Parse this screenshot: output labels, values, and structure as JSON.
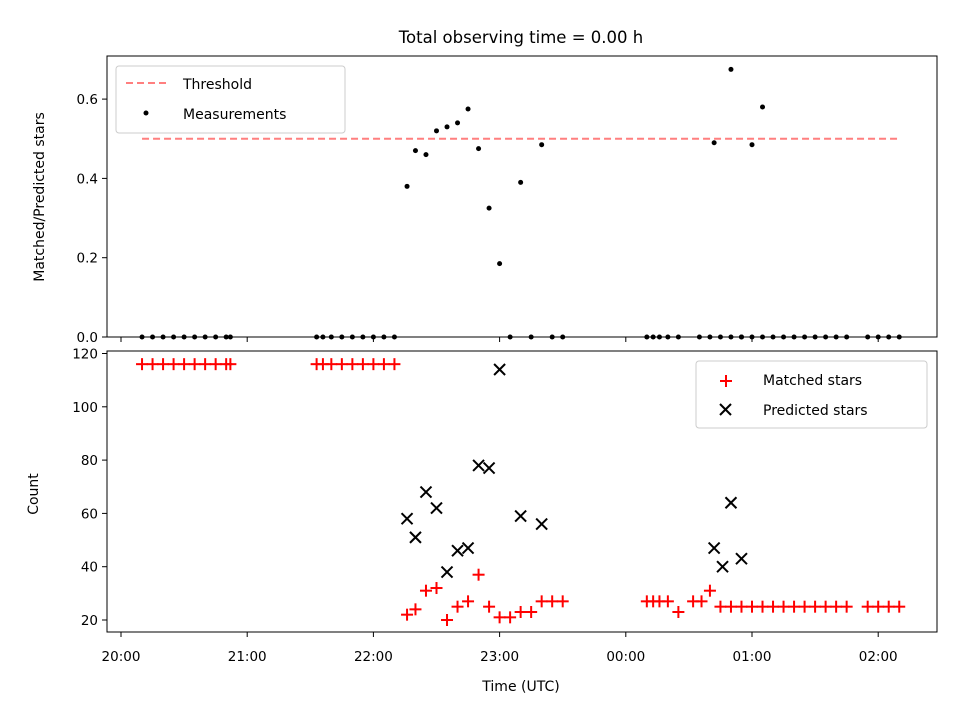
{
  "chart_data": [
    {
      "type": "scatter",
      "title": "Total observing time = 0.00 h",
      "xlabel": "",
      "ylabel": "Matched/Predicted stars",
      "ylim": [
        0,
        0.7
      ],
      "yticks": [
        "0.0",
        "0.2",
        "0.4",
        "0.6"
      ],
      "legend": {
        "position": "upper-left"
      },
      "threshold": {
        "name": "Threshold",
        "value": 0.5,
        "x_range": [
          "20:10",
          "02:10"
        ],
        "color": "#ff7f7f",
        "style": "dashed"
      },
      "series": [
        {
          "name": "Measurements",
          "color": "#000000",
          "x": [
            "20:10",
            "20:15",
            "20:20",
            "20:25",
            "20:30",
            "20:35",
            "20:40",
            "20:45",
            "20:50",
            "20:52",
            "21:33",
            "21:36",
            "21:40",
            "21:45",
            "21:50",
            "21:55",
            "22:00",
            "22:05",
            "22:10",
            "22:16",
            "22:20",
            "22:25",
            "22:30",
            "22:35",
            "22:40",
            "22:45",
            "22:50",
            "22:55",
            "23:00",
            "23:05",
            "23:10",
            "23:15",
            "23:20",
            "23:25",
            "23:30",
            "00:10",
            "00:13",
            "00:16",
            "00:20",
            "00:25",
            "00:35",
            "00:40",
            "00:45",
            "00:50",
            "00:55",
            "01:00",
            "01:05",
            "01:10",
            "01:15",
            "01:20",
            "01:25",
            "01:30",
            "01:35",
            "01:40",
            "01:45",
            "01:55",
            "02:00",
            "02:05",
            "02:10"
          ],
          "y": [
            0,
            0,
            0,
            0,
            0,
            0,
            0,
            0,
            0,
            0,
            0,
            0,
            0,
            0,
            0,
            0,
            0,
            0,
            0,
            0.38,
            0.47,
            0.46,
            0.52,
            0.53,
            0.54,
            0.575,
            0.475,
            0.325,
            0.185,
            0,
            0.39,
            0,
            0.485,
            0,
            0,
            0,
            0,
            0,
            0,
            0,
            0,
            0,
            0,
            0,
            0,
            0,
            0,
            0,
            0,
            0,
            0,
            0,
            0,
            0,
            0,
            0,
            0,
            0,
            0
          ],
          "extra_points": {
            "x": [
              "00:42",
              "00:50",
              "00:55",
              "01:00",
              "01:05"
            ],
            "y": [
              0.49,
              0.675,
              0,
              0.485,
              0.58
            ]
          }
        }
      ]
    },
    {
      "type": "scatter",
      "title": "",
      "xlabel": "Time (UTC)",
      "ylabel": "Count",
      "ylim": [
        15,
        122
      ],
      "yticks": [
        "20",
        "40",
        "60",
        "80",
        "100",
        "120"
      ],
      "xticks": [
        "20:00",
        "21:00",
        "22:00",
        "23:00",
        "00:00",
        "01:00",
        "02:00"
      ],
      "legend": {
        "position": "upper-right"
      },
      "series": [
        {
          "name": "Matched stars",
          "marker": "plus",
          "color": "#ff0000",
          "x": [
            "20:10",
            "20:15",
            "20:20",
            "20:25",
            "20:30",
            "20:35",
            "20:40",
            "20:45",
            "20:50",
            "20:52",
            "21:33",
            "21:36",
            "21:40",
            "21:45",
            "21:50",
            "21:55",
            "22:00",
            "22:05",
            "22:10",
            "22:16",
            "22:20",
            "22:25",
            "22:30",
            "22:35",
            "22:40",
            "22:45",
            "22:50",
            "22:55",
            "23:00",
            "23:05",
            "23:10",
            "23:15",
            "23:20",
            "23:25",
            "23:30",
            "00:10",
            "00:13",
            "00:16",
            "00:20",
            "00:25",
            "00:32",
            "00:36",
            "00:40",
            "00:45",
            "00:50",
            "00:55",
            "01:00",
            "01:05",
            "01:10",
            "01:15",
            "01:20",
            "01:25",
            "01:30",
            "01:35",
            "01:40",
            "01:45",
            "01:55",
            "02:00",
            "02:05",
            "02:10"
          ],
          "y": [
            116,
            116,
            116,
            116,
            116,
            116,
            116,
            116,
            116,
            116,
            116,
            116,
            116,
            116,
            116,
            116,
            116,
            116,
            116,
            22,
            24,
            31,
            32,
            20,
            25,
            27,
            37,
            25,
            21,
            21,
            23,
            23,
            27,
            27,
            27,
            27,
            27,
            27,
            27,
            23,
            27,
            27,
            31,
            25,
            25,
            25,
            25,
            25,
            25,
            25,
            25,
            25,
            25,
            25,
            25,
            25,
            25,
            25,
            25,
            25
          ]
        },
        {
          "name": "Predicted stars",
          "marker": "x",
          "color": "#000000",
          "x": [
            "22:16",
            "22:20",
            "22:25",
            "22:30",
            "22:35",
            "22:40",
            "22:45",
            "22:50",
            "22:55",
            "23:00",
            "23:10",
            "23:20",
            "00:42",
            "00:46",
            "00:50",
            "00:55"
          ],
          "y": [
            58,
            51,
            68,
            62,
            38,
            46,
            47,
            78,
            77,
            114,
            59,
            56,
            47,
            40,
            64,
            43
          ]
        }
      ]
    }
  ]
}
